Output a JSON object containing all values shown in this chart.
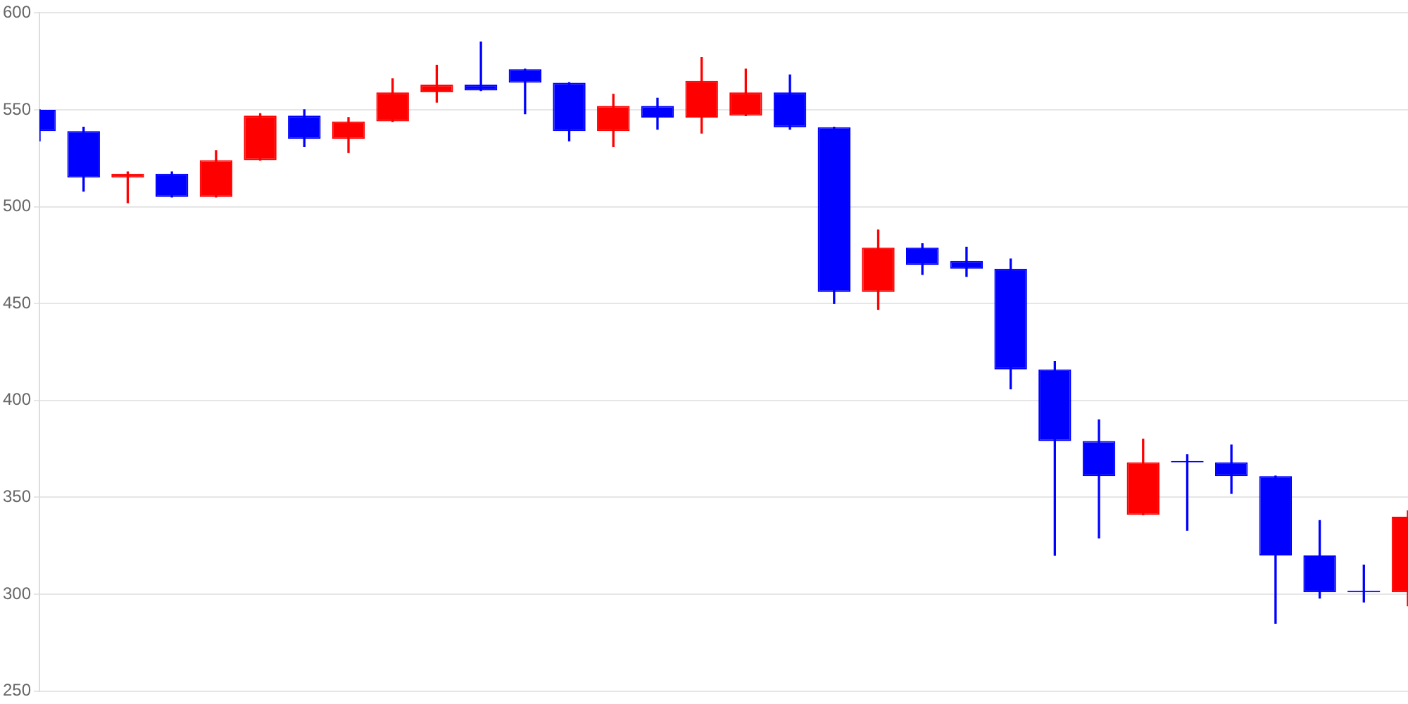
{
  "chart_data": {
    "type": "candlestick",
    "categories": [
      null,
      null,
      null,
      null,
      null,
      null,
      null,
      null,
      null,
      null,
      null,
      null,
      null,
      null,
      null,
      null,
      null,
      null,
      null,
      null,
      null,
      null,
      null,
      null,
      null,
      null,
      null,
      null,
      null,
      null,
      null,
      null
    ],
    "ohlc": [
      [
        550,
        550,
        534,
        539
      ],
      [
        539,
        541,
        508,
        515
      ],
      [
        515,
        518,
        502,
        517
      ],
      [
        517,
        518,
        505,
        505
      ],
      [
        505,
        529,
        505,
        524
      ],
      [
        524,
        548,
        524,
        547
      ],
      [
        547,
        550,
        531,
        535
      ],
      [
        535,
        546,
        528,
        544
      ],
      [
        544,
        566,
        544,
        559
      ],
      [
        559,
        573,
        554,
        563
      ],
      [
        563,
        585,
        560,
        560
      ],
      [
        571,
        571,
        548,
        564
      ],
      [
        564,
        564,
        534,
        539
      ],
      [
        539,
        558,
        531,
        552
      ],
      [
        552,
        556,
        540,
        546
      ],
      [
        546,
        577,
        538,
        565
      ],
      [
        547,
        571,
        547,
        559
      ],
      [
        559,
        568,
        540,
        541
      ],
      [
        541,
        541,
        450,
        456
      ],
      [
        456,
        488,
        447,
        479
      ],
      [
        479,
        481,
        465,
        470
      ],
      [
        472,
        479,
        464,
        468
      ],
      [
        468,
        473,
        406,
        416
      ],
      [
        416,
        420,
        320,
        379
      ],
      [
        379,
        390,
        329,
        361
      ],
      [
        341,
        380,
        341,
        368
      ],
      [
        368,
        372,
        333,
        368
      ],
      [
        368,
        377,
        352,
        361
      ],
      [
        361,
        361,
        285,
        320
      ],
      [
        320,
        338,
        298,
        301
      ],
      [
        301,
        315,
        296,
        301
      ],
      [
        301,
        343,
        294,
        340
      ]
    ],
    "colors": [
      "#0000ff",
      "#0000ff",
      "#ff0000",
      "#0000ff",
      "#ff0000",
      "#ff0000",
      "#0000ff",
      "#ff0000",
      "#ff0000",
      "#ff0000",
      "#0000ff",
      "#0000ff",
      "#0000ff",
      "#ff0000",
      "#0000ff",
      "#ff0000",
      "#ff0000",
      "#0000ff",
      "#0000ff",
      "#ff0000",
      "#0000ff",
      "#0000ff",
      "#0000ff",
      "#0000ff",
      "#0000ff",
      "#ff0000",
      "#0000ff",
      "#0000ff",
      "#0000ff",
      "#0000ff",
      "#0000ff",
      "#ff0000"
    ],
    "ylim": [
      250,
      600
    ],
    "yticks": [
      250,
      300,
      350,
      400,
      450,
      500,
      550,
      600
    ],
    "grid": "y",
    "tick_labels": "y",
    "legend": false
  }
}
